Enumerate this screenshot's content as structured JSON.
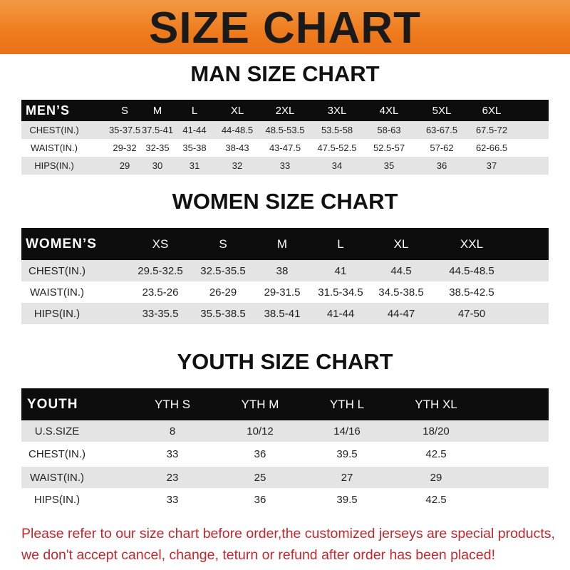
{
  "title": "SIZE CHART",
  "colors": {
    "banner": "#ee7b1c",
    "header_row": "#0d0d0d",
    "note": "#c1272d"
  },
  "men": {
    "title": "MAN SIZE CHART",
    "header": [
      "MEN’S",
      "S",
      "M",
      "L",
      "XL",
      "2XL",
      "3XL",
      "4XL",
      "5XL",
      "6XL"
    ],
    "rows": [
      [
        "CHEST(IN.)",
        "35-37.5",
        "37.5-41",
        "41-44",
        "44-48.5",
        "48.5-53.5",
        "53.5-58",
        "58-63",
        "63-67.5",
        "67.5-72"
      ],
      [
        "WAIST(IN.)",
        "29-32",
        "32-35",
        "35-38",
        "38-43",
        "43-47.5",
        "47.5-52.5",
        "52.5-57",
        "57-62",
        "62-66.5"
      ],
      [
        "HIPS(IN.)",
        "29",
        "30",
        "31",
        "32",
        "33",
        "34",
        "35",
        "36",
        "37"
      ]
    ]
  },
  "women": {
    "title": "WOMEN SIZE CHART",
    "header": [
      "WOMEN’S",
      "XS",
      "S",
      "M",
      "L",
      "XL",
      "XXL"
    ],
    "rows": [
      [
        "CHEST(IN.)",
        "29.5-32.5",
        "32.5-35.5",
        "38",
        "41",
        "44.5",
        "44.5-48.5"
      ],
      [
        "WAIST(IN.)",
        "23.5-26",
        "26-29",
        "29-31.5",
        "31.5-34.5",
        "34.5-38.5",
        "38.5-42.5"
      ],
      [
        "HIPS(IN.)",
        "33-35.5",
        "35.5-38.5",
        "38.5-41",
        "41-44",
        "44-47",
        "47-50"
      ]
    ]
  },
  "youth": {
    "title": "YOUTH SIZE CHART",
    "header": [
      "YOUTH",
      "YTH S",
      "YTH M",
      "YTH L",
      "YTH XL"
    ],
    "rows": [
      [
        "U.S.SIZE",
        "8",
        "10/12",
        "14/16",
        "18/20"
      ],
      [
        "CHEST(IN.)",
        "33",
        "36",
        "39.5",
        "42.5"
      ],
      [
        "WAIST(IN.)",
        "23",
        "25",
        "27",
        "29"
      ],
      [
        "HIPS(IN.)",
        "33",
        "36",
        "39.5",
        "42.5"
      ]
    ]
  },
  "note": {
    "line1": "Please refer to our size chart before order,the customized jerseys are special products,",
    "line2": "we don't accept cancel, change, teturn or refund after order has been placed!"
  }
}
